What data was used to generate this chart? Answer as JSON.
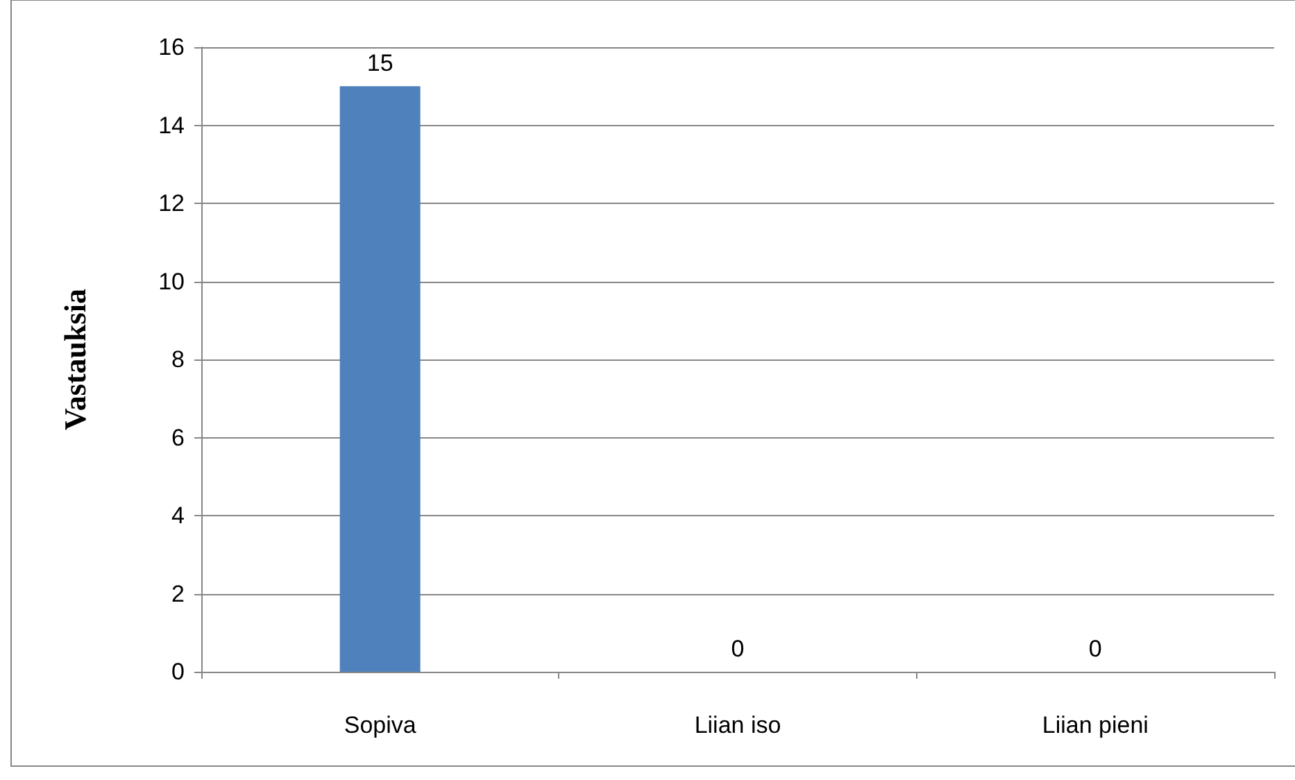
{
  "chart_data": {
    "type": "bar",
    "ylabel": "Vastauksia",
    "categories": [
      "Sopiva",
      "Liian iso",
      "Liian pieni"
    ],
    "values": [
      15,
      0,
      0
    ],
    "color": "#4f81bd",
    "ylim": [
      0,
      16
    ],
    "yticks": [
      0,
      2,
      4,
      6,
      8,
      10,
      12,
      14,
      16
    ],
    "grid": "y",
    "data_labels": true
  }
}
